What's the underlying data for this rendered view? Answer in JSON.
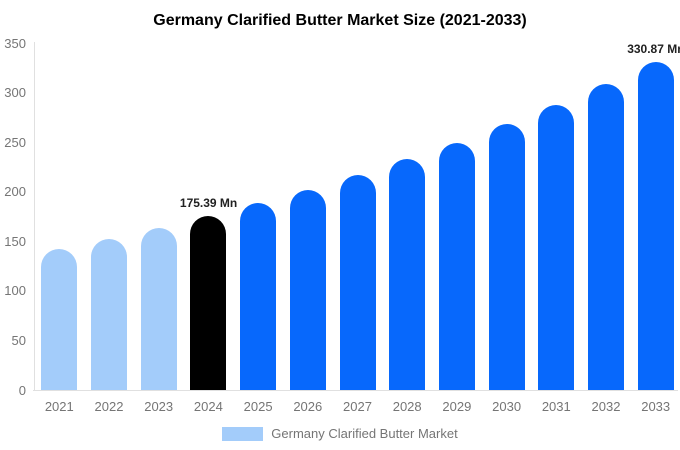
{
  "title": "Germany Clarified Butter Market Size (2021-2033)",
  "legend": {
    "label": "Germany Clarified Butter Market",
    "swatch_color": "#a3ccfa"
  },
  "colors": {
    "historical_bar": "#a3ccfa",
    "base_year_bar": "#000000",
    "forecast_bar": "#0768fc",
    "axis_line": "#e0e0e0",
    "axis_text": "#757575",
    "annotation_text": "#212121",
    "title_text": "#000000",
    "background": "#ffffff"
  },
  "chart_data": {
    "type": "bar",
    "title": "Germany Clarified Butter Market Size (2021-2033)",
    "categories": [
      "2021",
      "2022",
      "2023",
      "2024",
      "2025",
      "2026",
      "2027",
      "2028",
      "2029",
      "2030",
      "2031",
      "2032",
      "2033"
    ],
    "values": [
      142,
      152.3,
      163.5,
      175.39,
      188.2,
      202,
      216.7,
      232.6,
      249.5,
      267.8,
      287.4,
      308.3,
      330.87
    ],
    "bar_colors": [
      "#a3ccfa",
      "#a3ccfa",
      "#a3ccfa",
      "#000000",
      "#0768fc",
      "#0768fc",
      "#0768fc",
      "#0768fc",
      "#0768fc",
      "#0768fc",
      "#0768fc",
      "#0768fc",
      "#0768fc"
    ],
    "annotations": [
      {
        "category": "2024",
        "text": "175.39 Mn"
      },
      {
        "category": "2033",
        "text": "330.87 Mn"
      }
    ],
    "xlabel": "",
    "ylabel": "",
    "ylim": [
      0,
      350
    ],
    "yticks": [
      0,
      50,
      100,
      150,
      200,
      250,
      300,
      350
    ],
    "grid": false,
    "legend_position": "bottom",
    "legend_entries": [
      "Germany Clarified Butter Market"
    ]
  }
}
